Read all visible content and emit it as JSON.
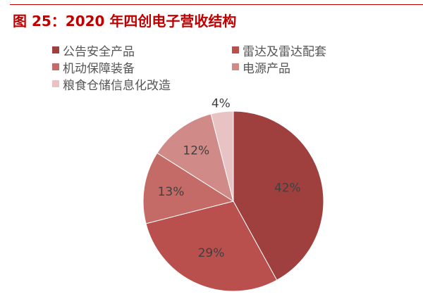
{
  "title": "图 25：2020 年四创电子营收结构",
  "chart_data": {
    "type": "pie",
    "title": "图 25：2020 年四创电子营收结构",
    "categories": [
      "公告安全产品",
      "雷达及雷达配套",
      "机动保障装备",
      "电源产品",
      "粮食仓储信息化改造"
    ],
    "values": [
      42,
      29,
      13,
      12,
      4
    ],
    "labels": [
      "42%",
      "29%",
      "13%",
      "12%",
      "4%"
    ],
    "colors": [
      "#9f403e",
      "#b9504e",
      "#c46a67",
      "#d08b89",
      "#e9c3c3"
    ],
    "start": "12 o'clock, clockwise",
    "legend": "top"
  }
}
